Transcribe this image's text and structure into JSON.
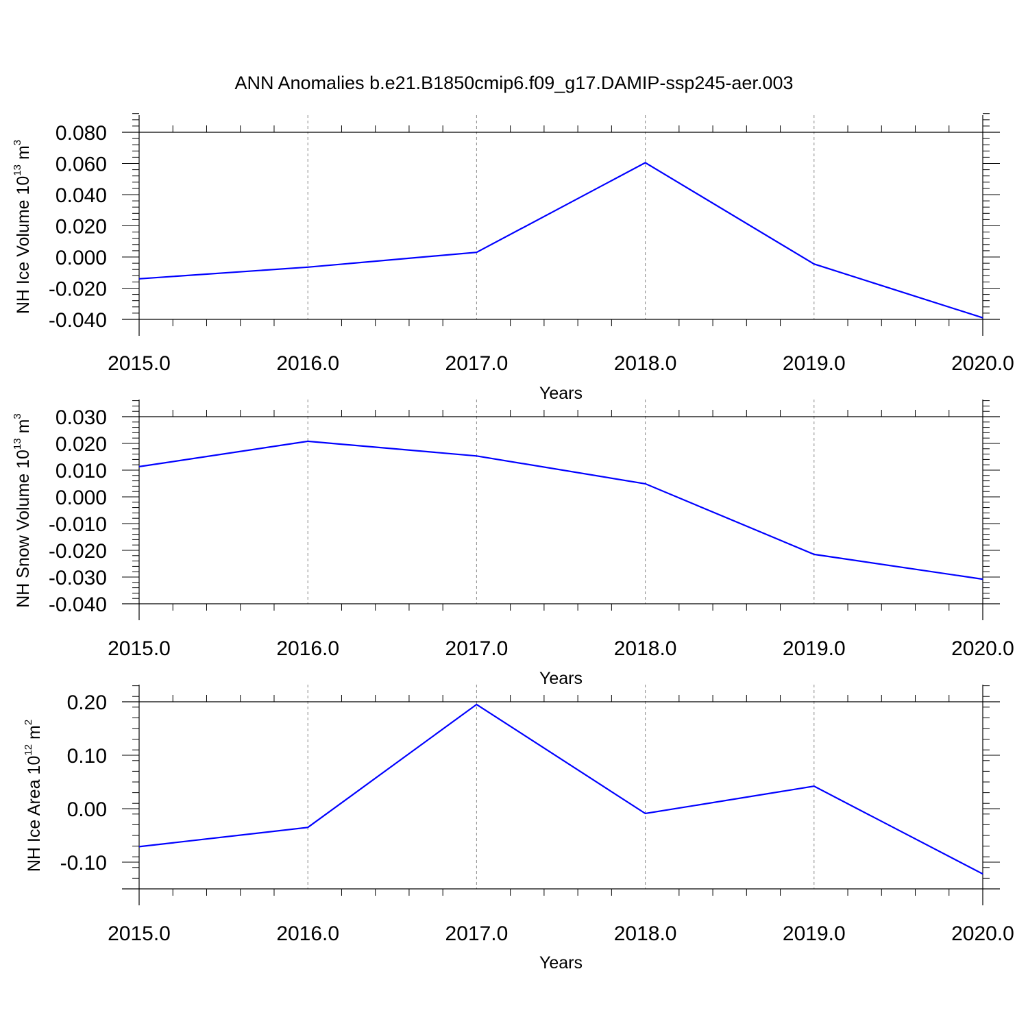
{
  "figure_title": "ANN Anomalies b.e21.B1850cmip6.f09_g17.DAMIP-ssp245-aer.003",
  "colors": {
    "line": "#0000ff",
    "frame": "#000000",
    "grid": "#888888"
  },
  "chart_data": [
    {
      "type": "line",
      "xlabel": "Years",
      "ylabel": {
        "text": "NH Ice Volume 10",
        "exp": "13",
        "unit": " m",
        "unit_exp": "3"
      },
      "x": [
        2015,
        2016,
        2017,
        2018,
        2019,
        2020
      ],
      "series": [
        {
          "values": [
            -0.014,
            -0.0065,
            0.003,
            0.0605,
            -0.0045,
            -0.039
          ]
        }
      ],
      "ylim": [
        -0.04,
        0.08
      ],
      "yticks": [
        -0.04,
        -0.02,
        0.0,
        0.02,
        0.04,
        0.06,
        0.08
      ],
      "ytick_labels": [
        "-0.040",
        "-0.020",
        "0.000",
        "0.020",
        "0.040",
        "0.060",
        "0.080"
      ],
      "y_top_extra": 0.012,
      "xlim": [
        2015,
        2020
      ],
      "xticks": [
        2015,
        2016,
        2017,
        2018,
        2019,
        2020
      ],
      "xtick_labels": [
        "2015.0",
        "2016.0",
        "2017.0",
        "2018.0",
        "2019.0",
        "2020.0"
      ],
      "grid": "vertical-dashed"
    },
    {
      "type": "line",
      "xlabel": "Years",
      "ylabel": {
        "text": "NH Snow Volume 10",
        "exp": "13",
        "unit": " m",
        "unit_exp": "3"
      },
      "x": [
        2015,
        2016,
        2017,
        2018,
        2019,
        2020
      ],
      "series": [
        {
          "values": [
            0.0113,
            0.0208,
            0.0153,
            0.0049,
            -0.0215,
            -0.0308
          ]
        }
      ],
      "ylim": [
        -0.04,
        0.03
      ],
      "yticks": [
        -0.04,
        -0.03,
        -0.02,
        -0.01,
        0.0,
        0.01,
        0.02,
        0.03
      ],
      "ytick_labels": [
        "-0.040",
        "-0.030",
        "-0.020",
        "-0.010",
        "0.000",
        "0.010",
        "0.020",
        "0.030"
      ],
      "y_top_extra": 0.0065,
      "xlim": [
        2015,
        2020
      ],
      "xticks": [
        2015,
        2016,
        2017,
        2018,
        2019,
        2020
      ],
      "xtick_labels": [
        "2015.0",
        "2016.0",
        "2017.0",
        "2018.0",
        "2019.0",
        "2020.0"
      ],
      "grid": "vertical-dashed"
    },
    {
      "type": "line",
      "xlabel": "Years",
      "ylabel": {
        "text": "NH Ice Area 10",
        "exp": "12",
        "unit": " m",
        "unit_exp": "2"
      },
      "x": [
        2015,
        2016,
        2017,
        2018,
        2019,
        2020
      ],
      "series": [
        {
          "values": [
            -0.071,
            -0.035,
            0.195,
            -0.009,
            0.042,
            -0.122
          ]
        }
      ],
      "ylim": [
        -0.15,
        0.2
      ],
      "yticks": [
        -0.1,
        0.0,
        0.1,
        0.2
      ],
      "ytick_labels": [
        "-0.10",
        "0.00",
        "0.10",
        "0.20"
      ],
      "y_top_extra": 0.033,
      "xlim": [
        2015,
        2020
      ],
      "xticks": [
        2015,
        2016,
        2017,
        2018,
        2019,
        2020
      ],
      "xtick_labels": [
        "2015.0",
        "2016.0",
        "2017.0",
        "2018.0",
        "2019.0",
        "2020.0"
      ],
      "grid": "vertical-dashed"
    }
  ]
}
